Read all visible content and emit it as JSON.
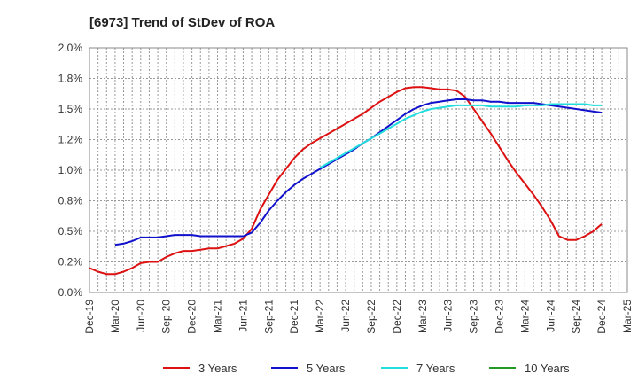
{
  "chart_data": {
    "type": "line",
    "title": "[6973]  Trend of StDev of ROA",
    "xlabel": "",
    "ylabel": "",
    "x_ticks": [
      "Dec-19",
      "Mar-20",
      "Jun-20",
      "Sep-20",
      "Dec-20",
      "Mar-21",
      "Jun-21",
      "Sep-21",
      "Dec-21",
      "Mar-22",
      "Jun-22",
      "Sep-22",
      "Dec-22",
      "Mar-23",
      "Jun-23",
      "Sep-23",
      "Dec-23",
      "Mar-24",
      "Jun-24",
      "Sep-24",
      "Dec-24",
      "Mar-25"
    ],
    "y_ticks": [
      "0.0%",
      "0.2%",
      "0.5%",
      "0.8%",
      "1.0%",
      "1.2%",
      "1.5%",
      "1.8%",
      "2.0%"
    ],
    "y_tick_values": [
      0,
      0.25,
      0.5,
      0.75,
      1.0,
      1.25,
      1.5,
      1.75,
      2.0
    ],
    "ylim": [
      0,
      2.0
    ],
    "grid": true,
    "legend_position": "bottom",
    "series": [
      {
        "name": "3 Years",
        "color": "#dd1111",
        "points": [
          [
            "Dec-19",
            0.2
          ],
          [
            "Jan-20",
            0.17
          ],
          [
            "Feb-20",
            0.15
          ],
          [
            "Mar-20",
            0.15
          ],
          [
            "Apr-20",
            0.17
          ],
          [
            "May-20",
            0.2
          ],
          [
            "Jun-20",
            0.24
          ],
          [
            "Jul-20",
            0.25
          ],
          [
            "Aug-20",
            0.25
          ],
          [
            "Sep-20",
            0.29
          ],
          [
            "Oct-20",
            0.32
          ],
          [
            "Nov-20",
            0.34
          ],
          [
            "Dec-20",
            0.34
          ],
          [
            "Jan-21",
            0.35
          ],
          [
            "Feb-21",
            0.36
          ],
          [
            "Mar-21",
            0.36
          ],
          [
            "Apr-21",
            0.38
          ],
          [
            "May-21",
            0.4
          ],
          [
            "Jun-21",
            0.44
          ],
          [
            "Jul-21",
            0.52
          ],
          [
            "Aug-21",
            0.68
          ],
          [
            "Sep-21",
            0.8
          ],
          [
            "Oct-21",
            0.92
          ],
          [
            "Nov-21",
            1.01
          ],
          [
            "Dec-21",
            1.1
          ],
          [
            "Jan-22",
            1.17
          ],
          [
            "Feb-22",
            1.22
          ],
          [
            "Mar-22",
            1.26
          ],
          [
            "Apr-22",
            1.3
          ],
          [
            "May-22",
            1.34
          ],
          [
            "Jun-22",
            1.38
          ],
          [
            "Jul-22",
            1.42
          ],
          [
            "Aug-22",
            1.46
          ],
          [
            "Sep-22",
            1.51
          ],
          [
            "Oct-22",
            1.56
          ],
          [
            "Nov-22",
            1.6
          ],
          [
            "Dec-22",
            1.64
          ],
          [
            "Jan-23",
            1.67
          ],
          [
            "Feb-23",
            1.68
          ],
          [
            "Mar-23",
            1.68
          ],
          [
            "Apr-23",
            1.67
          ],
          [
            "May-23",
            1.66
          ],
          [
            "Jun-23",
            1.66
          ],
          [
            "Jul-23",
            1.65
          ],
          [
            "Aug-23",
            1.6
          ],
          [
            "Sep-23",
            1.5
          ],
          [
            "Oct-23",
            1.4
          ],
          [
            "Nov-23",
            1.3
          ],
          [
            "Dec-23",
            1.19
          ],
          [
            "Jan-24",
            1.08
          ],
          [
            "Feb-24",
            0.98
          ],
          [
            "Mar-24",
            0.89
          ],
          [
            "Apr-24",
            0.8
          ],
          [
            "May-24",
            0.7
          ],
          [
            "Jun-24",
            0.59
          ],
          [
            "Jul-24",
            0.46
          ],
          [
            "Aug-24",
            0.43
          ],
          [
            "Sep-24",
            0.43
          ],
          [
            "Oct-24",
            0.46
          ],
          [
            "Nov-24",
            0.5
          ],
          [
            "Dec-24",
            0.56
          ]
        ]
      },
      {
        "name": "5 Years",
        "color": "#1111cc",
        "points": [
          [
            "Mar-20",
            0.39
          ],
          [
            "Apr-20",
            0.4
          ],
          [
            "May-20",
            0.42
          ],
          [
            "Jun-20",
            0.45
          ],
          [
            "Jul-20",
            0.45
          ],
          [
            "Aug-20",
            0.45
          ],
          [
            "Sep-20",
            0.46
          ],
          [
            "Oct-20",
            0.47
          ],
          [
            "Nov-20",
            0.47
          ],
          [
            "Dec-20",
            0.47
          ],
          [
            "Jan-21",
            0.46
          ],
          [
            "Feb-21",
            0.46
          ],
          [
            "Mar-21",
            0.46
          ],
          [
            "Apr-21",
            0.46
          ],
          [
            "May-21",
            0.46
          ],
          [
            "Jun-21",
            0.46
          ],
          [
            "Jul-21",
            0.49
          ],
          [
            "Aug-21",
            0.57
          ],
          [
            "Sep-21",
            0.67
          ],
          [
            "Oct-21",
            0.75
          ],
          [
            "Nov-21",
            0.82
          ],
          [
            "Dec-21",
            0.88
          ],
          [
            "Jan-22",
            0.93
          ],
          [
            "Feb-22",
            0.97
          ],
          [
            "Mar-22",
            1.01
          ],
          [
            "Apr-22",
            1.05
          ],
          [
            "May-22",
            1.09
          ],
          [
            "Jun-22",
            1.13
          ],
          [
            "Jul-22",
            1.17
          ],
          [
            "Aug-22",
            1.22
          ],
          [
            "Sep-22",
            1.26
          ],
          [
            "Oct-22",
            1.31
          ],
          [
            "Nov-22",
            1.36
          ],
          [
            "Dec-22",
            1.41
          ],
          [
            "Jan-23",
            1.46
          ],
          [
            "Feb-23",
            1.5
          ],
          [
            "Mar-23",
            1.53
          ],
          [
            "Apr-23",
            1.55
          ],
          [
            "May-23",
            1.56
          ],
          [
            "Jun-23",
            1.57
          ],
          [
            "Jul-23",
            1.58
          ],
          [
            "Aug-23",
            1.58
          ],
          [
            "Sep-23",
            1.57
          ],
          [
            "Oct-23",
            1.57
          ],
          [
            "Nov-23",
            1.56
          ],
          [
            "Dec-23",
            1.56
          ],
          [
            "Jan-24",
            1.55
          ],
          [
            "Feb-24",
            1.55
          ],
          [
            "Mar-24",
            1.55
          ],
          [
            "Apr-24",
            1.55
          ],
          [
            "May-24",
            1.54
          ],
          [
            "Jun-24",
            1.53
          ],
          [
            "Jul-24",
            1.52
          ],
          [
            "Aug-24",
            1.51
          ],
          [
            "Sep-24",
            1.5
          ],
          [
            "Oct-24",
            1.49
          ],
          [
            "Nov-24",
            1.48
          ],
          [
            "Dec-24",
            1.47
          ]
        ]
      },
      {
        "name": "7 Years",
        "color": "#22dddd",
        "points": [
          [
            "Mar-22",
            1.02
          ],
          [
            "Apr-22",
            1.06
          ],
          [
            "May-22",
            1.1
          ],
          [
            "Jun-22",
            1.14
          ],
          [
            "Jul-22",
            1.18
          ],
          [
            "Aug-22",
            1.22
          ],
          [
            "Sep-22",
            1.26
          ],
          [
            "Oct-22",
            1.3
          ],
          [
            "Nov-22",
            1.34
          ],
          [
            "Dec-22",
            1.38
          ],
          [
            "Jan-23",
            1.42
          ],
          [
            "Feb-23",
            1.45
          ],
          [
            "Mar-23",
            1.48
          ],
          [
            "Apr-23",
            1.5
          ],
          [
            "May-23",
            1.51
          ],
          [
            "Jun-23",
            1.52
          ],
          [
            "Jul-23",
            1.53
          ],
          [
            "Aug-23",
            1.53
          ],
          [
            "Sep-23",
            1.53
          ],
          [
            "Oct-23",
            1.53
          ],
          [
            "Nov-23",
            1.52
          ],
          [
            "Dec-23",
            1.52
          ],
          [
            "Jan-24",
            1.52
          ],
          [
            "Feb-24",
            1.52
          ],
          [
            "Mar-24",
            1.53
          ],
          [
            "Apr-24",
            1.53
          ],
          [
            "May-24",
            1.53
          ],
          [
            "Jun-24",
            1.54
          ],
          [
            "Jul-24",
            1.54
          ],
          [
            "Aug-24",
            1.54
          ],
          [
            "Sep-24",
            1.54
          ],
          [
            "Oct-24",
            1.54
          ],
          [
            "Nov-24",
            1.53
          ],
          [
            "Dec-24",
            1.53
          ]
        ]
      },
      {
        "name": "10 Years",
        "color": "#229922",
        "points": []
      }
    ]
  }
}
